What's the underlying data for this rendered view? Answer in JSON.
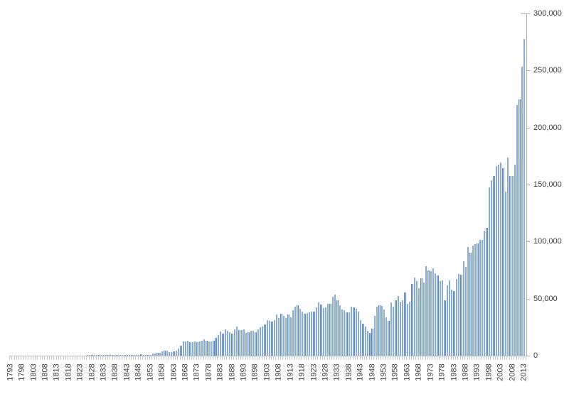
{
  "chart_data": {
    "type": "bar",
    "title": "",
    "xlabel": "",
    "ylabel": "",
    "x_start_year": 1793,
    "x_end_year": 2013,
    "x_label_interval": 5,
    "x_tick_labels": [
      "1793",
      "1798",
      "1803",
      "1808",
      "1813",
      "1818",
      "1823",
      "1828",
      "1833",
      "1838",
      "1843",
      "1848",
      "1853",
      "1858",
      "1863",
      "1868",
      "1873",
      "1878",
      "1883",
      "1888",
      "1893",
      "1898",
      "1903",
      "1908",
      "1913",
      "1918",
      "1923",
      "1928",
      "1933",
      "1938",
      "1943",
      "1948",
      "1953",
      "1958",
      "1963",
      "1968",
      "1973",
      "1978",
      "1983",
      "1988",
      "1993",
      "1998",
      "2003",
      "2008",
      "2013"
    ],
    "y_tick_labels": [
      "0",
      "50,000",
      "100,000",
      "150,000",
      "200,000",
      "250,000",
      "300,000"
    ],
    "y_tick_values": [
      0,
      50000,
      100000,
      150000,
      200000,
      250000,
      300000
    ],
    "ylim": [
      0,
      300000
    ],
    "y_axis_position": "right",
    "gridlines": false,
    "legend": false,
    "bar_fill_color": "#b6d0ec",
    "bar_edge_color": "#5c8ac1",
    "axis_line_color": "#ababab",
    "tick_comb_color": "#c9c9c9",
    "label_text_color": "#3d3d3d",
    "values": [
      20,
      22,
      12,
      44,
      51,
      28,
      44,
      41,
      44,
      65,
      97,
      84,
      57,
      63,
      99,
      158,
      203,
      223,
      215,
      238,
      181,
      210,
      173,
      206,
      174,
      222,
      156,
      155,
      168,
      200,
      173,
      228,
      304,
      323,
      331,
      368,
      447,
      544,
      573,
      474,
      586,
      630,
      752,
      702,
      426,
      514,
      404,
      458,
      490,
      488,
      493,
      478,
      473,
      566,
      495,
      583,
      984,
      883,
      752,
      885,
      844,
      1755,
      1881,
      2302,
      2674,
      3455,
      4160,
      4357,
      3020,
      3214,
      3773,
      4630,
      6088,
      8863,
      12277,
      12526,
      12931,
      12137,
      11659,
      12180,
      11616,
      12230,
      13291,
      14169,
      12920,
      12345,
      12165,
      12902,
      15500,
      18091,
      21162,
      19118,
      23285,
      21767,
      20403,
      19551,
      23324,
      25313,
      22312,
      22647,
      22750,
      19855,
      20856,
      21822,
      22067,
      20377,
      23278,
      24644,
      25546,
      27119,
      31029,
      30258,
      29775,
      31170,
      35859,
      32735,
      36561,
      35141,
      32856,
      36198,
      33917,
      39892,
      43118,
      43892,
      40935,
      38452,
      36797,
      37060,
      37798,
      38369,
      38616,
      42574,
      46432,
      44733,
      41717,
      42357,
      45267,
      45226,
      51756,
      53458,
      48774,
      44420,
      40618,
      39782,
      37683,
      38061,
      43073,
      42238,
      41109,
      38449,
      31054,
      28053,
      25695,
      21803,
      20139,
      23963,
      35131,
      43040,
      44326,
      43616,
      40468,
      33809,
      30432,
      46817,
      42744,
      48330,
      52408,
      47170,
      48368,
      55691,
      45679,
      47376,
      62857,
      68406,
      65652,
      59104,
      67559,
      64427,
      78317,
      74810,
      74143,
      76278,
      71994,
      70226,
      65269,
      66102,
      48854,
      61819,
      65771,
      57888,
      56860,
      67200,
      71661,
      70860,
      82952,
      77924,
      95537,
      90365,
      96511,
      97444,
      98342,
      101676,
      101419,
      109645,
      111983,
      147517,
      153485,
      157494,
      166035,
      167331,
      169023,
      164290,
      143806,
      173772,
      157282,
      157772,
      167349,
      219614,
      224505,
      253155,
      277835
    ]
  }
}
